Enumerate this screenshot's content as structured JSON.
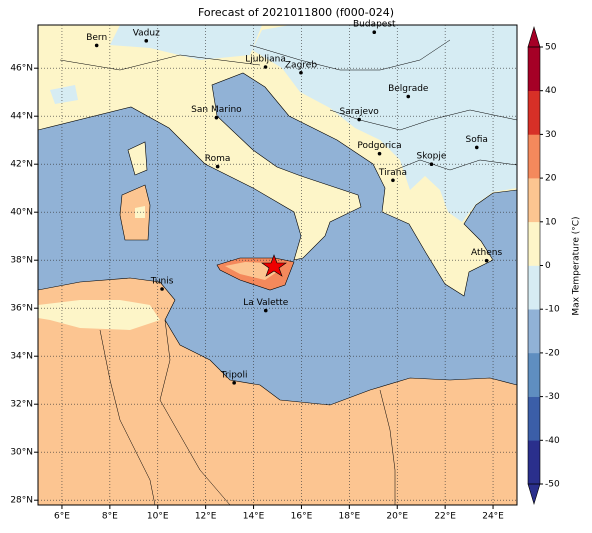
{
  "title": "Forecast of 2021011800 (f000-024)",
  "map": {
    "xlim": [
      5,
      25
    ],
    "ylim": [
      27.8,
      47.8
    ],
    "xticks": [
      {
        "value": 6,
        "label": "6°E"
      },
      {
        "value": 8,
        "label": "8°E"
      },
      {
        "value": 10,
        "label": "10°E"
      },
      {
        "value": 12,
        "label": "12°E"
      },
      {
        "value": 14,
        "label": "14°E"
      },
      {
        "value": 16,
        "label": "16°E"
      },
      {
        "value": 18,
        "label": "18°E"
      },
      {
        "value": 20,
        "label": "20°E"
      },
      {
        "value": 22,
        "label": "22°E"
      },
      {
        "value": 24,
        "label": "24°E"
      }
    ],
    "yticks": [
      {
        "value": 28,
        "label": "28°N"
      },
      {
        "value": 30,
        "label": "30°N"
      },
      {
        "value": 32,
        "label": "32°N"
      },
      {
        "value": 34,
        "label": "34°N"
      },
      {
        "value": 36,
        "label": "36°N"
      },
      {
        "value": 38,
        "label": "38°N"
      },
      {
        "value": 40,
        "label": "40°N"
      },
      {
        "value": 42,
        "label": "42°N"
      },
      {
        "value": 44,
        "label": "44°N"
      },
      {
        "value": 46,
        "label": "46°N"
      }
    ],
    "grid": true,
    "cities": [
      "Bern",
      "Vaduz",
      "Budapest",
      "Ljubljana",
      "Zagreb",
      "San Marino",
      "Belgrade",
      "Sarajevo",
      "Roma",
      "Podgorica",
      "Sofia",
      "Skopje",
      "Tirana",
      "Athens",
      "Tunis",
      "La Valette",
      "Tripoli"
    ]
  },
  "colorbar": {
    "label": "Max Temperature (°C)",
    "lim": [
      -50,
      50
    ],
    "ticks": [
      -50,
      -40,
      -30,
      -20,
      -10,
      0,
      10,
      20,
      30,
      40,
      50
    ],
    "colors": [
      "#2a2f8c",
      "#3b5ea8",
      "#5f8ec0",
      "#91b2d6",
      "#d6ecf3",
      "#fdf5c8",
      "#fcc591",
      "#f4895c",
      "#d73027",
      "#a50026"
    ]
  }
}
